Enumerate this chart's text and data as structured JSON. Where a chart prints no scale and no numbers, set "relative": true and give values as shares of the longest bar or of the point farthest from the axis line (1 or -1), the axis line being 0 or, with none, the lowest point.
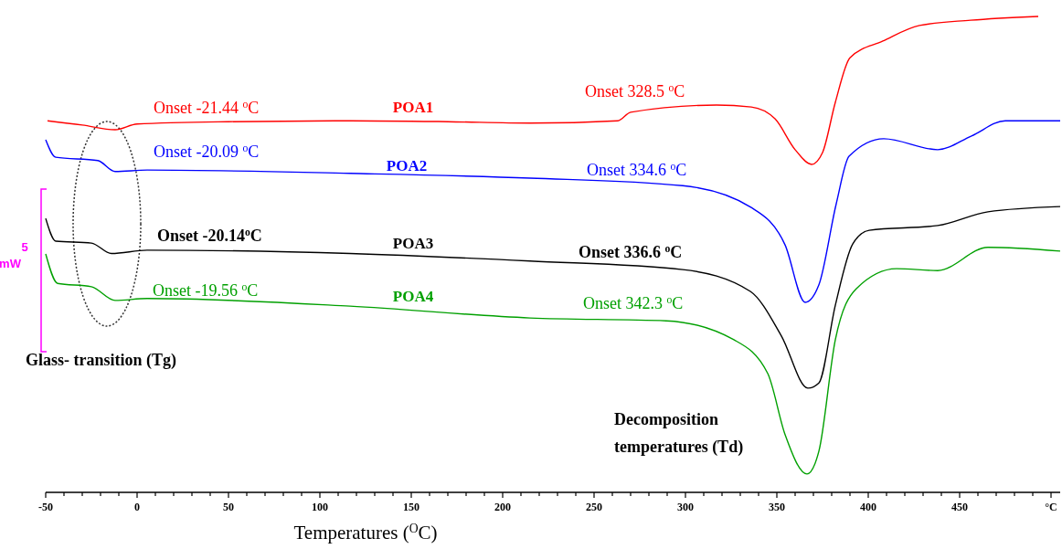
{
  "chart_data": {
    "type": "line",
    "relative": true,
    "xlabel": "Temperatures ($^{O}$C)",
    "xlim": [
      -50,
      505
    ],
    "xticks": [
      -50,
      {
        "value": -40,
        "label": null
      },
      {
        "value": -30,
        "label": null
      },
      {
        "value": -20,
        "label": null
      },
      {
        "value": -10,
        "label": null
      },
      0,
      {
        "value": 10,
        "label": null
      },
      {
        "value": 20,
        "label": null
      },
      {
        "value": 30,
        "label": null
      },
      {
        "value": 40,
        "label": null
      },
      50,
      {
        "value": 60,
        "label": null
      },
      {
        "value": 70,
        "label": null
      },
      {
        "value": 80,
        "label": null
      },
      {
        "value": 90,
        "label": null
      },
      100,
      {
        "value": 110,
        "label": null
      },
      {
        "value": 120,
        "label": null
      },
      {
        "value": 130,
        "label": null
      },
      {
        "value": 140,
        "label": null
      },
      150,
      {
        "value": 160,
        "label": null
      },
      {
        "value": 170,
        "label": null
      },
      {
        "value": 180,
        "label": null
      },
      {
        "value": 190,
        "label": null
      },
      200,
      {
        "value": 210,
        "label": null
      },
      {
        "value": 220,
        "label": null
      },
      {
        "value": 230,
        "label": null
      },
      {
        "value": 240,
        "label": null
      },
      250,
      {
        "value": 260,
        "label": null
      },
      {
        "value": 270,
        "label": null
      },
      {
        "value": 280,
        "label": null
      },
      {
        "value": 290,
        "label": null
      },
      300,
      {
        "value": 310,
        "label": null
      },
      {
        "value": 320,
        "label": null
      },
      {
        "value": 330,
        "label": null
      },
      {
        "value": 340,
        "label": null
      },
      350,
      {
        "value": 360,
        "label": null
      },
      {
        "value": 370,
        "label": null
      },
      {
        "value": 380,
        "label": null
      },
      {
        "value": 390,
        "label": null
      },
      400,
      {
        "value": 410,
        "label": null
      },
      {
        "value": 420,
        "label": null
      },
      {
        "value": 430,
        "label": null
      },
      {
        "value": 440,
        "label": null
      },
      450,
      {
        "value": 460,
        "label": null
      },
      {
        "value": 470,
        "label": null
      },
      {
        "value": 480,
        "label": null
      },
      {
        "value": 490,
        "label": null
      },
      {
        "value": 500,
        "label": "°C"
      }
    ],
    "series": [
      {
        "name": "POA1",
        "color": "#ff0000",
        "x": [
          -49,
          -30,
          -12,
          0,
          50,
          117,
          170,
          215,
          263,
          270,
          317,
          336,
          349,
          360,
          369,
          375,
          382,
          390,
          408,
          428,
          456,
          493
        ],
        "values": [
          0.78,
          0.771,
          0.761,
          0.773,
          0.778,
          0.78,
          0.778,
          0.775,
          0.78,
          0.798,
          0.813,
          0.809,
          0.784,
          0.719,
          0.688,
          0.713,
          0.819,
          0.913,
          0.948,
          0.981,
          0.992,
          1.0
        ]
      },
      {
        "name": "POA2",
        "color": "#0000ff",
        "x": [
          -50,
          -44.5,
          -21.5,
          -12,
          5.5,
          116.5,
          215,
          298.5,
          336,
          354.5,
          365.5,
          373,
          382.5,
          389.5,
          408.5,
          438,
          456.5,
          475,
          505
        ],
        "values": [
          0.74,
          0.703,
          0.696,
          0.673,
          0.676,
          0.669,
          0.659,
          0.643,
          0.597,
          0.518,
          0.397,
          0.434,
          0.605,
          0.705,
          0.742,
          0.719,
          0.748,
          0.78,
          0.78
        ]
      },
      {
        "name": "POA3",
        "color": "#000000",
        "x": [
          -50,
          -44.5,
          -25,
          -14,
          5.5,
          116.5,
          215,
          298.5,
          335.5,
          352.5,
          367,
          373,
          382,
          391.5,
          400.5,
          438,
          465.5,
          505
        ],
        "values": [
          0.574,
          0.526,
          0.522,
          0.5,
          0.507,
          0.5,
          0.484,
          0.466,
          0.42,
          0.326,
          0.216,
          0.227,
          0.391,
          0.52,
          0.549,
          0.559,
          0.588,
          0.599
        ]
      },
      {
        "name": "POA4",
        "color": "#00a000",
        "x": [
          -50,
          -43.5,
          -25,
          -12,
          5.5,
          116.5,
          215,
          289.5,
          326.5,
          345,
          354.5,
          366.5,
          373,
          382,
          393.5,
          415.5,
          438,
          465.5,
          505
        ],
        "values": [
          0.499,
          0.437,
          0.43,
          0.401,
          0.405,
          0.389,
          0.364,
          0.358,
          0.318,
          0.247,
          0.118,
          0.035,
          0.083,
          0.318,
          0.426,
          0.468,
          0.464,
          0.513,
          0.505
        ]
      }
    ],
    "annotations": [
      "Onset -21.44 $^{o}$C",
      "Onset -20.09 $^{o}$C",
      "Onset -20.14$^{o}$C",
      "Onset -19.56 $^{o}$C",
      "Onset 328.5 $^{o}$C",
      "Onset 334.6 $^{o}$C",
      "Onset 336.6 $^{o}$C",
      "Onset 342.3 $^{o}$C",
      "Glass- transition (Tg)",
      "Decomposition\ntemperatures (Td)",
      "5\nmW"
    ]
  }
}
